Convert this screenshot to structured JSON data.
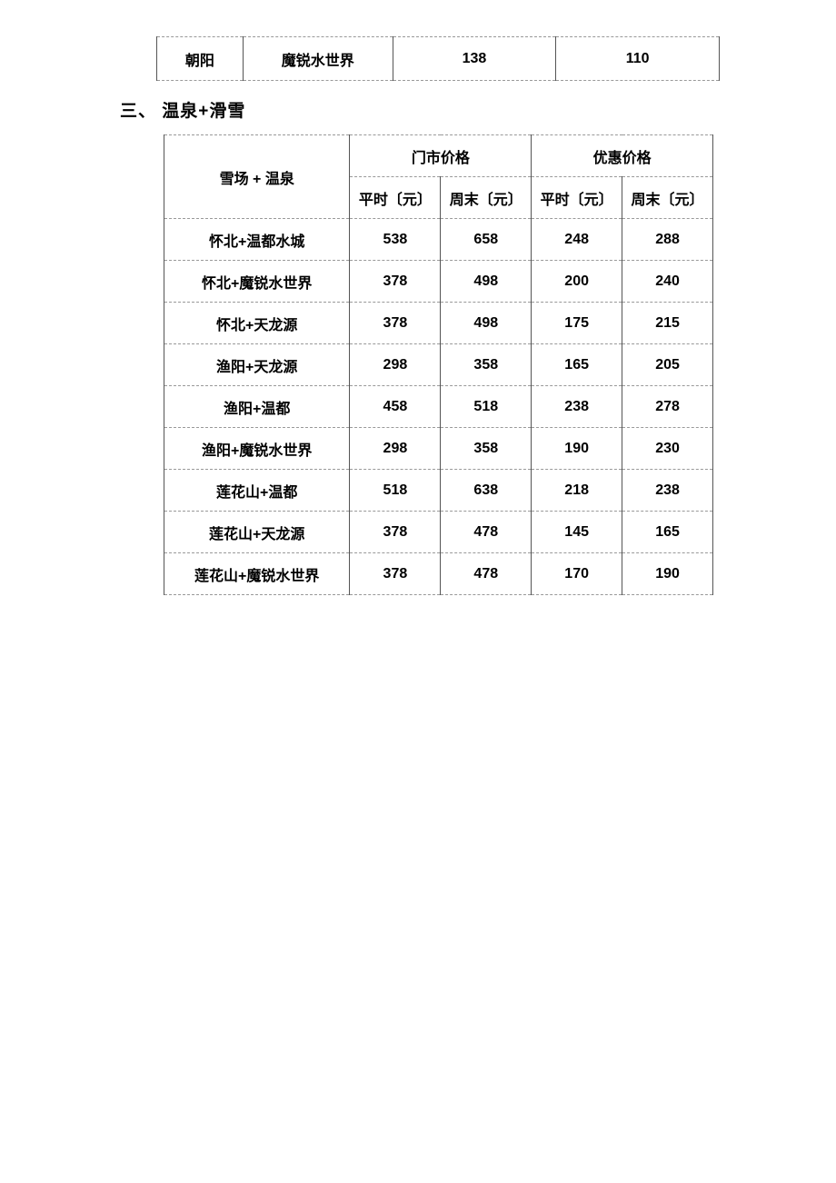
{
  "table1": {
    "row": {
      "district": "朝阳",
      "venue": "魔锐水世界",
      "price_a": "138",
      "price_b": "110"
    }
  },
  "section_heading": "三、  温泉+滑雪",
  "table2": {
    "header": {
      "combo": "雪场  +  温泉",
      "list_price": "门市价格",
      "disc_price": "优惠价格",
      "weekday_yuan": "平时〔元〕",
      "weekend_yuan": "周末〔元〕"
    },
    "rows": [
      {
        "name": "怀北+温都水城",
        "lp_wd": "538",
        "lp_we": "658",
        "dp_wd": "248",
        "dp_we": "288"
      },
      {
        "name": "怀北+魔锐水世界",
        "lp_wd": "378",
        "lp_we": "498",
        "dp_wd": "200",
        "dp_we": "240"
      },
      {
        "name": "怀北+天龙源",
        "lp_wd": "378",
        "lp_we": "498",
        "dp_wd": "175",
        "dp_we": "215"
      },
      {
        "name": "渔阳+天龙源",
        "lp_wd": "298",
        "lp_we": "358",
        "dp_wd": "165",
        "dp_we": "205"
      },
      {
        "name": "渔阳+温都",
        "lp_wd": "458",
        "lp_we": "518",
        "dp_wd": "238",
        "dp_we": "278"
      },
      {
        "name": "渔阳+魔锐水世界",
        "lp_wd": "298",
        "lp_we": "358",
        "dp_wd": "190",
        "dp_we": "230"
      },
      {
        "name": "莲花山+温都",
        "lp_wd": "518",
        "lp_we": "638",
        "dp_wd": "218",
        "dp_we": "238"
      },
      {
        "name": "莲花山+天龙源",
        "lp_wd": "378",
        "lp_we": "478",
        "dp_wd": "145",
        "dp_we": "165"
      },
      {
        "name": "莲花山+魔锐水世界",
        "lp_wd": "378",
        "lp_we": "478",
        "dp_wd": "170",
        "dp_we": "190"
      }
    ]
  },
  "styles": {
    "border_dash_color": "#999999",
    "border_solid_color": "#555555",
    "text_color": "#000000",
    "background_color": "#ffffff",
    "font_size_body": 16,
    "font_size_heading": 19
  }
}
